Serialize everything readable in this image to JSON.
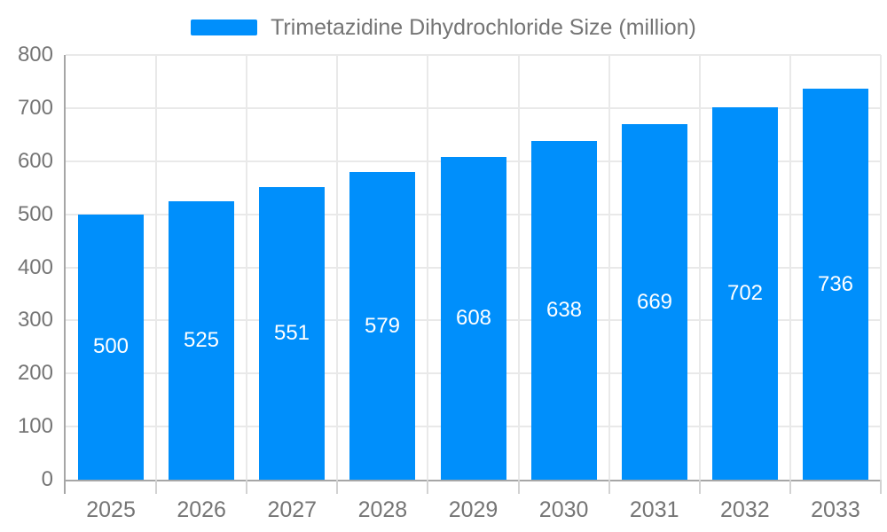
{
  "legend": {
    "label": "Trimetazidine Dihydrochloride Size (million)"
  },
  "chart_data": {
    "type": "bar",
    "title": "Trimetazidine Dihydrochloride Size (million)",
    "categories": [
      "2025",
      "2026",
      "2027",
      "2028",
      "2029",
      "2030",
      "2031",
      "2032",
      "2033"
    ],
    "values": [
      500,
      525,
      551,
      579,
      608,
      638,
      669,
      702,
      736
    ],
    "series": [
      {
        "name": "Trimetazidine Dihydrochloride Size (million)",
        "values": [
          500,
          525,
          551,
          579,
          608,
          638,
          669,
          702,
          736
        ]
      }
    ],
    "xlabel": "",
    "ylabel": "",
    "ylim": [
      0,
      800
    ],
    "y_ticks": [
      "0",
      "100",
      "200",
      "300",
      "400",
      "500",
      "600",
      "700",
      "800"
    ],
    "grid": "on",
    "legend_position": "top",
    "data_labels": "inside-center-white",
    "colors": {
      "bar": "#008FFB",
      "axis_text": "#757575",
      "grid_line": "#e9e9e9",
      "axis_line": "#a6a6a6",
      "bar_label_text": "#ffffff",
      "background": "#ffffff"
    }
  }
}
